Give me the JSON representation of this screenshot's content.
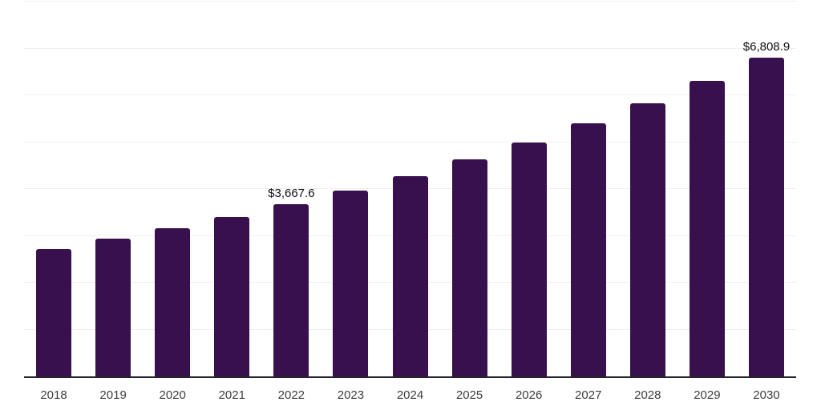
{
  "chart_data": {
    "type": "bar",
    "title": "",
    "xlabel": "",
    "ylabel": "",
    "categories": [
      "2018",
      "2019",
      "2020",
      "2021",
      "2022",
      "2023",
      "2024",
      "2025",
      "2026",
      "2027",
      "2028",
      "2029",
      "2030"
    ],
    "values": [
      2718,
      2945,
      3162,
      3407,
      3667.6,
      3962.5,
      4281.2,
      4625.5,
      4997.5,
      5399.4,
      5833.6,
      6302.8,
      6808.9
    ],
    "point_labels": [
      "",
      "",
      "",
      "",
      "$3,667.6",
      "",
      "",
      "",
      "",
      "",
      "",
      "",
      "$6,808.9"
    ],
    "ylim": [
      0,
      8000
    ],
    "gridline_step": 1000,
    "grid": true,
    "y_axis_labels_visible": false,
    "legend": "none",
    "colors": {
      "bar": "#37104d",
      "grid": "#efefef",
      "axis": "#26222e",
      "tick_label": "#3d3d3d",
      "point_label": "#111111",
      "background": "#ffffff"
    }
  }
}
